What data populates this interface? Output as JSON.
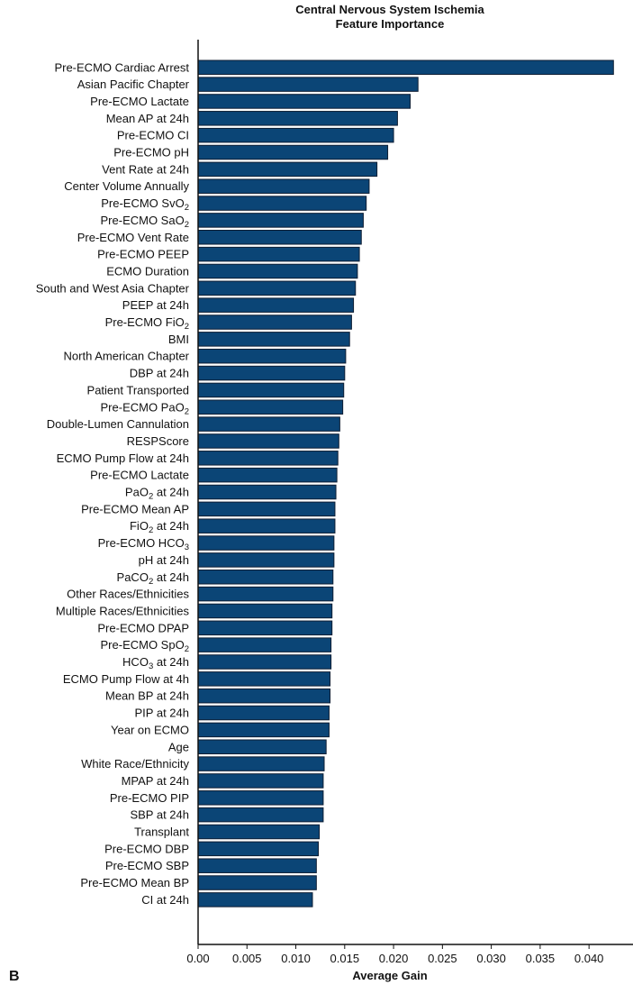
{
  "panel_letter": "B",
  "colors": {
    "bar": "#0b4576",
    "bar_edge": "#0d1d33",
    "axis": "#111111"
  },
  "chart_data": {
    "type": "bar",
    "orientation": "horizontal",
    "title": "Central Nervous System Ischemia",
    "subtitle": "Feature Importance",
    "xlabel": "Average Gain",
    "ylabel": "",
    "xlim": [
      0,
      0.0445
    ],
    "xticks": [
      "0.00",
      "0.005",
      "0.010",
      "0.015",
      "0.020",
      "0.025",
      "0.030",
      "0.035",
      "0.040"
    ],
    "grid": false,
    "categories": [
      "Pre-ECMO Cardiac Arrest",
      "Asian Pacific Chapter",
      "Pre-ECMO Lactate",
      "Mean AP at 24h",
      "Pre-ECMO CI",
      "Pre-ECMO pH",
      "Vent Rate at 24h",
      "Center Volume Annually",
      "Pre-ECMO SvO2",
      "Pre-ECMO SaO2",
      "Pre-ECMO Vent Rate",
      "Pre-ECMO PEEP",
      "ECMO Duration",
      "South and West Asia Chapter",
      "PEEP at 24h",
      "Pre-ECMO FiO2",
      "BMI",
      "North American Chapter",
      "DBP at 24h",
      "Patient Transported",
      "Pre-ECMO PaO2",
      "Double-Lumen Cannulation",
      "RESPScore",
      "ECMO Pump Flow at 24h",
      "Pre-ECMO Lactate",
      "PaO2 at 24h",
      "Pre-ECMO Mean AP",
      "FiO2 at 24h",
      "Pre-ECMO HCO3",
      "pH at 24h",
      "PaCO2 at 24h",
      "Other Races/Ethnicities",
      "Multiple Races/Ethnicities",
      "Pre-ECMO DPAP",
      "Pre-ECMO SpO2",
      "HCO3 at 24h",
      "ECMO Pump Flow at 4h",
      "Mean BP at 24h",
      "PIP at 24h",
      "Year on ECMO",
      "Age",
      "White Race/Ethnicity",
      "MPAP at 24h",
      "Pre-ECMO PIP",
      "SBP at 24h",
      "Transplant",
      "Pre-ECMO DBP",
      "Pre-ECMO SBP",
      "Pre-ECMO Mean BP",
      "CI at 24h"
    ],
    "values": [
      0.0425,
      0.0225,
      0.0217,
      0.0204,
      0.02,
      0.0194,
      0.0183,
      0.0175,
      0.0172,
      0.0169,
      0.0167,
      0.0165,
      0.0163,
      0.0161,
      0.0159,
      0.0157,
      0.0155,
      0.0151,
      0.015,
      0.0149,
      0.0148,
      0.0145,
      0.0144,
      0.0143,
      0.0142,
      0.0141,
      0.014,
      0.014,
      0.0139,
      0.0139,
      0.0138,
      0.0138,
      0.0137,
      0.0137,
      0.0136,
      0.0136,
      0.0135,
      0.0135,
      0.0134,
      0.0134,
      0.0131,
      0.0129,
      0.0128,
      0.0128,
      0.0128,
      0.0124,
      0.0123,
      0.0121,
      0.0121,
      0.0117
    ]
  }
}
